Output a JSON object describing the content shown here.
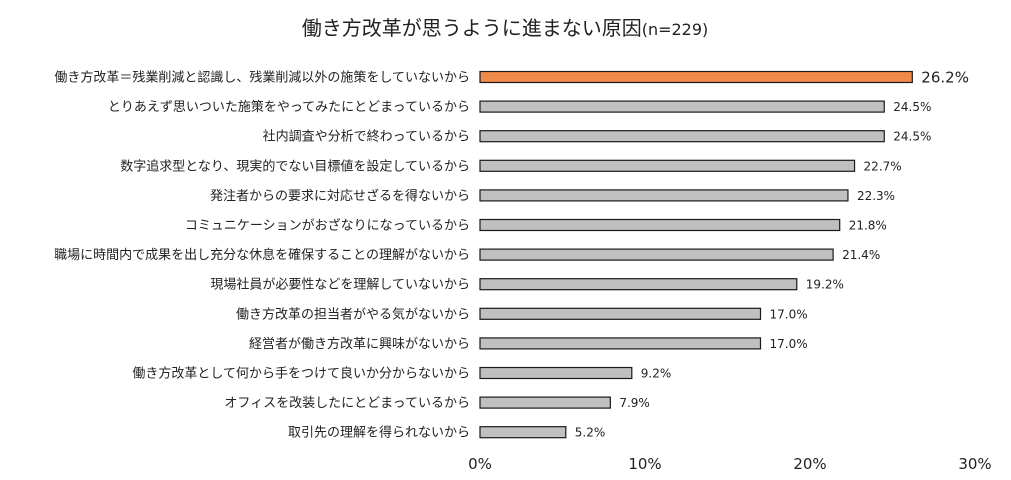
{
  "chart_data": {
    "type": "bar",
    "orientation": "horizontal",
    "title": "働き方改革が思うように進まない原因",
    "subtitle": "(n=229)",
    "categories": [
      "働き方改革＝残業削減と認識し、残業削減以外の施策をしていないから",
      "とりあえず思いついた施策をやってみたにとどまっているから",
      "社内調査や分析で終わっているから",
      "数字追求型となり、現実的でない目標値を設定しているから",
      "発注者からの要求に対応せざるを得ないから",
      "コミュニケーションがおざなりになっているから",
      "職場に時間内で成果を出し充分な休息を確保することの理解がないから",
      "現場社員が必要性などを理解していないから",
      "働き方改革の担当者がやる気がないから",
      "経営者が働き方改革に興味がないから",
      "働き方改革として何から手をつけて良いか分からないから",
      "オフィスを改装したにとどまっているから",
      "取引先の理解を得られないから"
    ],
    "values": [
      26.2,
      24.5,
      24.5,
      22.7,
      22.3,
      21.8,
      21.4,
      19.2,
      17.0,
      17.0,
      9.2,
      7.9,
      5.2
    ],
    "value_labels": [
      "26.2%",
      "24.5%",
      "24.5%",
      "22.7%",
      "22.3%",
      "21.8%",
      "21.4%",
      "19.2%",
      "17.0%",
      "17.0%",
      "9.2%",
      "7.9%",
      "5.2%"
    ],
    "xlim": [
      0,
      30
    ],
    "x_ticks": [
      "0%",
      "10%",
      "20%",
      "30%"
    ],
    "grid": false,
    "colors": {
      "highlight": "#F08A4B",
      "bar": "#C0C0C0",
      "outline": "#1a1a1a"
    }
  }
}
